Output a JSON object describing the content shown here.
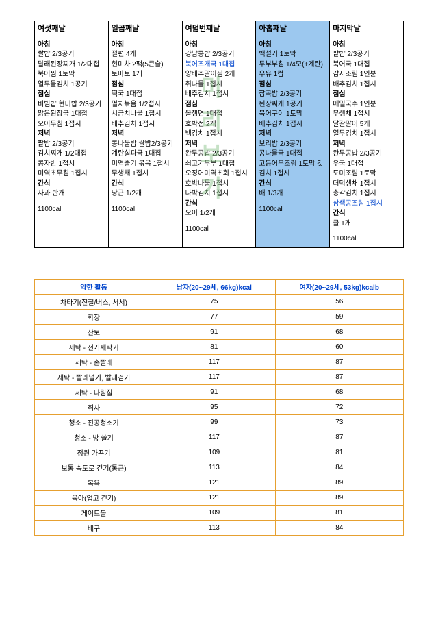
{
  "meal_table": {
    "columns": [
      {
        "title": "여섯째날",
        "highlight": false,
        "sections": [
          {
            "label": "아침",
            "items": [
              "쌀밥 2/3공기",
              "달래된장찌개 1/2대접",
              "북어찜 1토막",
              "열무물김치 1공기"
            ]
          },
          {
            "label": "점심",
            "items": [
              "비빔밥 현미밥 2/3공기",
              "맑은된장국 1대접",
              "오이무침 1접시"
            ]
          },
          {
            "label": "저녁",
            "items": [
              "팥밥 2/3공기",
              "김치찌개 1/2대접",
              "콩자반 1접시",
              "미역초무침 1접시"
            ]
          },
          {
            "label": "간식",
            "items": [
              "사과 반개"
            ]
          }
        ],
        "cal": "1100cal"
      },
      {
        "title": "일곱째날",
        "highlight": false,
        "sections": [
          {
            "label": "아침",
            "items": [
              "절편 4개",
              "현미차 2팩(5큰술)",
              "토마토 1개"
            ]
          },
          {
            "label": "점심",
            "items": [
              "떡국 1대접",
              "멸치볶음 1/2접시",
              "시금치나물 1접시",
              "배추김치 1접시"
            ]
          },
          {
            "label": "저녁",
            "items": [
              "콩나물밥 쌀밥2/3공기",
              "계란실파국 1대접",
              "미역줄기 볶음 1접시",
              "무생채 1접시"
            ]
          },
          {
            "label": "간식",
            "items": [
              "당근 1/2개"
            ]
          }
        ],
        "cal": "1100cal"
      },
      {
        "title": "여덟번째날",
        "highlight": false,
        "sections": [
          {
            "label": "아침",
            "items": [
              "강남콩밥 2/3공기",
              "북어조개국 1대접",
              "양배추말이찜 2개",
              "취나물 1접시",
              "배추김치 1접시"
            ],
            "linkIdx": 1
          },
          {
            "label": "점심",
            "items": [
              "올챙면 1대접",
              "호박전 2개",
              "백김치 1접시"
            ]
          },
          {
            "label": "저녁",
            "items": [
              "완두콩밥 2/3공기",
              "쇠고기두부 1대접",
              "오징어미역초회 1접시",
              "호박나물 1접시",
              "나박김치 1접시"
            ]
          },
          {
            "label": "간식",
            "items": [
              "오이 1/2개"
            ]
          }
        ],
        "cal": "1100cal"
      },
      {
        "title": "아홉째날",
        "highlight": true,
        "sections": [
          {
            "label": "아침",
            "items": [
              "백설기 1토막",
              "두부부침 1/4모(+계란)",
              "우유 1컵"
            ]
          },
          {
            "label": "점심",
            "items": [
              "잡곡밥 2/3공기",
              "된장찌개 1공기",
              "북어구이 1토막",
              "배추김치 1접시"
            ]
          },
          {
            "label": "저녁",
            "items": [
              "보리밥 2/3공기",
              "콩나물국 1대접",
              "고등어무조림 1토막 갓김치 1접시"
            ]
          },
          {
            "label": "간식",
            "items": [
              "배 1/3개"
            ]
          }
        ],
        "cal": "1100cal"
      },
      {
        "title": "마지막날",
        "highlight": false,
        "sections": [
          {
            "label": "아침",
            "items": [
              "팥밥 2/3공기",
              "북어국 1대접",
              "감자조림 1인분",
              "배추김치 1접시"
            ]
          },
          {
            "label": "점심",
            "items": [
              "메밀국수 1인분",
              "무생채 1접시",
              "달걀말이 5개",
              "열무김치 1접시"
            ]
          },
          {
            "label": "저녁",
            "items": [
              "완두콩밥 2/3공기",
              "우국 1대접",
              "도미조림 1토막",
              "더덕생채 1접시",
              "총각김치 1접시",
              "삼색콩조림 1접시"
            ],
            "linkIdx": 5
          },
          {
            "label": "간식",
            "items": [
              "귤 1개"
            ]
          }
        ],
        "cal": "1100cal"
      }
    ]
  },
  "watermark": "미리보기",
  "activity_table": {
    "headers": [
      "약한 활동",
      "남자(20~29세, 66kg)kcal",
      "여자(20~29세, 53kg)kcalb"
    ],
    "rows": [
      [
        "차타기(전철/버스, 서서)",
        "75",
        "56"
      ],
      [
        "화장",
        "77",
        "59"
      ],
      [
        "산보",
        "91",
        "68"
      ],
      [
        "세탁 - 전기세탁기",
        "81",
        "60"
      ],
      [
        "세탁 - 손빨래",
        "117",
        "87"
      ],
      [
        "세탁 - 빨래널기, 빨래걷기",
        "117",
        "87"
      ],
      [
        "세탁 - 다림질",
        "91",
        "68"
      ],
      [
        "취사",
        "95",
        "72"
      ],
      [
        "청소 - 진공청소기",
        "99",
        "73"
      ],
      [
        "청소 - 방 쓸기",
        "117",
        "87"
      ],
      [
        "정원 가꾸기",
        "109",
        "81"
      ],
      [
        "보통 속도로 걷기(통근)",
        "113",
        "84"
      ],
      [
        "목욕",
        "121",
        "89"
      ],
      [
        "육아(업고 걷기)",
        "121",
        "89"
      ],
      [
        "게이트볼",
        "109",
        "81"
      ],
      [
        "배구",
        "113",
        "84"
      ]
    ]
  },
  "styling": {
    "meal_border": "#000000",
    "activity_border": "#e6a030",
    "header_color": "#0044cc",
    "highlight_bg": "#9cc8ef",
    "watermark_color": "rgba(140,195,140,0.5)"
  }
}
